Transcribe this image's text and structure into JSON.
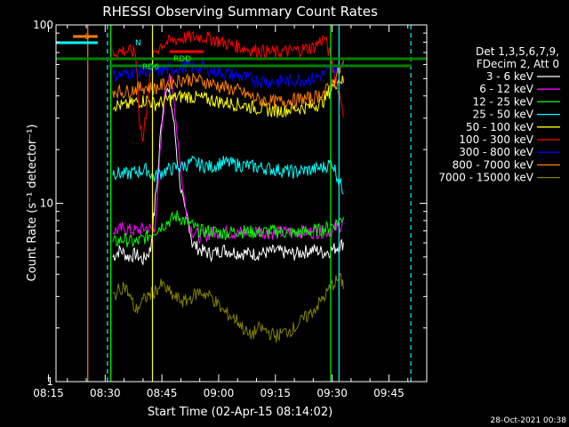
{
  "chart_data": {
    "type": "line",
    "title": "RHESSI Observing Summary Count Rates",
    "xlabel": "Start Time (02-Apr-15 08:14:02)",
    "ylabel": "Count Rate (s⁻¹ detector⁻¹)",
    "yscale": "log",
    "ylim": [
      1,
      100
    ],
    "xlim_minutes": [
      62,
      160
    ],
    "x_ticks": [
      {
        "label": "08:15",
        "min": 60
      },
      {
        "label": "08:30",
        "min": 75
      },
      {
        "label": "08:45",
        "min": 90
      },
      {
        "label": "09:00",
        "min": 105
      },
      {
        "label": "09:15",
        "min": 120
      },
      {
        "label": "09:30",
        "min": 135
      },
      {
        "label": "09:45",
        "min": 150
      }
    ],
    "y_ticks": [
      {
        "label": "1",
        "value": 1
      },
      {
        "label": "10",
        "value": 10
      },
      {
        "label": "100",
        "value": 100
      }
    ],
    "legend": {
      "placement": "right",
      "header": [
        "Det 1,3,5,6,7,9,",
        "FDecim 2, Att 0"
      ],
      "entries": [
        {
          "label": "3 - 6 keV",
          "color": "#ffffff"
        },
        {
          "label": "6 - 12 keV",
          "color": "#ff00ff"
        },
        {
          "label": "12 - 25 keV",
          "color": "#00ff00"
        },
        {
          "label": "25 - 50 keV",
          "color": "#00ffff"
        },
        {
          "label": "50 - 100 keV",
          "color": "#ffff00"
        },
        {
          "label": "100 - 300 keV",
          "color": "#ff0000"
        },
        {
          "label": "300 - 800 keV",
          "color": "#0000ff"
        },
        {
          "label": "800 - 7000 keV",
          "color": "#ff8000"
        },
        {
          "label": "7000 - 15000 keV",
          "color": "#808000"
        }
      ]
    },
    "flag_labels": [
      {
        "label": "S",
        "color": "#ff8000"
      },
      {
        "label": "N",
        "color": "#00ffff"
      },
      {
        "label": "RD6",
        "color": "#00ff00"
      },
      {
        "label": "RDD",
        "color": "#00ff00"
      }
    ],
    "annotations": [
      {
        "label": "S",
        "color": "#ff8000",
        "x_min": [
          66.5,
          73
        ]
      },
      {
        "label": "N",
        "color": "#00ffff",
        "x_min": [
          62,
          73
        ]
      },
      {
        "label": "RDD",
        "color": "#ff0000",
        "x_min": [
          92,
          101
        ]
      },
      {
        "label": "",
        "color": "#008000",
        "x_min": [
          62,
          160
        ]
      },
      {
        "label": "RD6",
        "color": "#008000",
        "x_min": [
          76,
          156
        ]
      }
    ],
    "vertical_markers": [
      {
        "x_min": 70.4,
        "color": "#ff8000",
        "style": "solid"
      },
      {
        "x_min": 75.6,
        "color": "#00ffff",
        "style": "dashed"
      },
      {
        "x_min": 76.5,
        "color": "#00ff00",
        "style": "solid"
      },
      {
        "x_min": 87.5,
        "color": "#ffff00",
        "style": "solid"
      },
      {
        "x_min": 134.6,
        "color": "#00ff00",
        "style": "solid"
      },
      {
        "x_min": 136.8,
        "color": "#00ffff",
        "style": "solid"
      },
      {
        "x_min": 155.8,
        "color": "#00ffff",
        "style": "dashed"
      }
    ],
    "series": [
      {
        "name": "3 - 6 keV",
        "color": "#ffffff",
        "x": [
          77,
          79,
          81,
          83,
          85,
          87,
          88,
          89,
          90,
          91,
          92,
          93,
          94,
          95,
          96,
          97,
          98,
          100,
          103,
          106,
          110,
          115,
          120,
          125,
          130,
          133,
          135,
          137,
          138
        ],
        "y": [
          5,
          5.5,
          5,
          5.2,
          4.8,
          5.5,
          9,
          15,
          30,
          45,
          40,
          30,
          18,
          12,
          9,
          8,
          6,
          5.5,
          5.2,
          5.5,
          5.3,
          5.2,
          5.4,
          5.2,
          5.5,
          5.3,
          5.5,
          5.8,
          6
        ]
      },
      {
        "name": "6 - 12 keV",
        "color": "#ff00ff",
        "x": [
          77,
          80,
          83,
          86,
          88,
          89,
          90,
          91,
          92,
          93,
          94,
          95,
          96,
          97,
          98,
          100,
          103,
          106,
          110,
          115,
          120,
          125,
          130,
          133,
          135,
          137,
          138
        ],
        "y": [
          7,
          7.2,
          7,
          7.3,
          7,
          12,
          25,
          45,
          55,
          40,
          25,
          15,
          10,
          8,
          7,
          6.5,
          6.8,
          7,
          6.8,
          7,
          6.8,
          7,
          6.9,
          7,
          7,
          7.5,
          8
        ]
      },
      {
        "name": "12 - 25 keV",
        "color": "#00ff00",
        "x": [
          77,
          80,
          83,
          86,
          88,
          90,
          92,
          94,
          96,
          98,
          100,
          103,
          106,
          110,
          115,
          120,
          125,
          130,
          133,
          135,
          137,
          138
        ],
        "y": [
          6,
          6.3,
          6,
          6.5,
          7,
          7.5,
          8,
          8.5,
          8,
          7.5,
          7,
          7,
          6.8,
          7,
          6.9,
          7,
          6.8,
          7,
          7.2,
          7.5,
          8,
          8.5
        ]
      },
      {
        "name": "25 - 50 keV",
        "color": "#00ffff",
        "x": [
          77,
          80,
          83,
          86,
          88,
          90,
          92,
          95,
          98,
          100,
          103,
          106,
          110,
          115,
          120,
          125,
          130,
          133,
          135,
          136,
          137,
          138
        ],
        "y": [
          15,
          14.5,
          15,
          15.5,
          14,
          15,
          15.5,
          16,
          17,
          16.5,
          16,
          17,
          16.5,
          16,
          15.5,
          15,
          15.5,
          16,
          17,
          15,
          13,
          12
        ]
      },
      {
        "name": "50 - 100 keV",
        "color": "#ffff00",
        "x": [
          77,
          80,
          83,
          86,
          88,
          90,
          93,
          96,
          100,
          103,
          106,
          110,
          113,
          116,
          120,
          125,
          130,
          133,
          135,
          137,
          138
        ],
        "y": [
          36,
          35,
          37,
          38,
          36,
          37,
          39,
          40,
          39,
          38,
          37,
          36,
          35,
          34,
          33,
          34,
          35,
          38,
          45,
          50,
          48
        ]
      },
      {
        "name": "100 - 300 keV",
        "color": "#ff0000",
        "x": [
          77,
          80,
          83,
          84,
          85,
          86,
          88,
          90,
          93,
          96,
          100,
          103,
          106,
          110,
          113,
          116,
          120,
          125,
          130,
          133,
          135,
          137,
          138
        ],
        "y": [
          70,
          72,
          70,
          30,
          22,
          35,
          70,
          78,
          82,
          85,
          86,
          84,
          80,
          76,
          73,
          72,
          70,
          72,
          75,
          85,
          60,
          40,
          33
        ]
      },
      {
        "name": "300 - 800 keV",
        "color": "#0000ff",
        "x": [
          77,
          80,
          83,
          86,
          88,
          90,
          93,
          96,
          100,
          103,
          106,
          110,
          113,
          116,
          120,
          125,
          130,
          133,
          135,
          137,
          138
        ],
        "y": [
          52,
          53,
          55,
          56,
          55,
          56,
          57,
          58,
          58,
          56,
          54,
          52,
          50,
          49,
          48,
          49,
          50,
          53,
          56,
          58,
          57
        ]
      },
      {
        "name": "800 - 7000 keV",
        "color": "#ff8000",
        "x": [
          77,
          80,
          83,
          86,
          88,
          90,
          93,
          96,
          100,
          103,
          106,
          110,
          113,
          116,
          120,
          125,
          130,
          133,
          135,
          137,
          138
        ],
        "y": [
          43,
          42,
          44,
          45,
          44,
          46,
          48,
          50,
          49,
          47,
          45,
          43,
          40,
          38,
          37,
          38,
          39,
          42,
          47,
          55,
          60
        ]
      },
      {
        "name": "7000 - 15000 keV",
        "color": "#808000",
        "x": [
          77,
          80,
          83,
          86,
          88,
          90,
          93,
          96,
          100,
          103,
          106,
          110,
          113,
          116,
          120,
          125,
          130,
          133,
          135,
          137,
          138
        ],
        "y": [
          3,
          3.5,
          2.5,
          3,
          3.2,
          3.5,
          3,
          2.8,
          3.2,
          3,
          2.5,
          2.2,
          1.8,
          2,
          1.8,
          2,
          2.5,
          3,
          3.5,
          3.8,
          3.5
        ]
      }
    ],
    "grid": false
  },
  "footer": {
    "timestamp": "28-Oct-2021 00:38"
  }
}
